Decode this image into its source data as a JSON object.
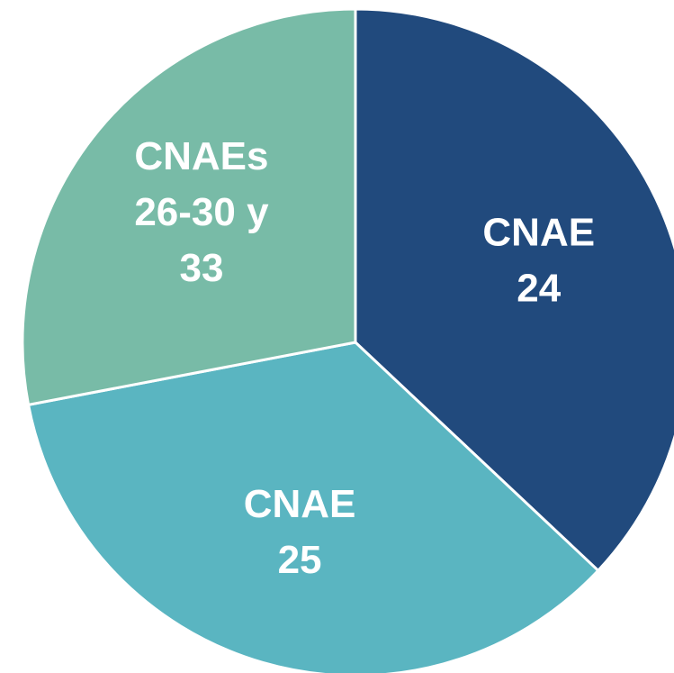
{
  "chart_data": {
    "type": "pie",
    "categories": [
      [
        "CNAE",
        "24"
      ],
      [
        "CNAE",
        "25"
      ],
      [
        "CNAEs",
        "26-30 y",
        "33"
      ]
    ],
    "values": [
      37,
      35,
      28
    ],
    "colors": [
      "#214a7d",
      "#5ab5c1",
      "#78bba7"
    ]
  }
}
